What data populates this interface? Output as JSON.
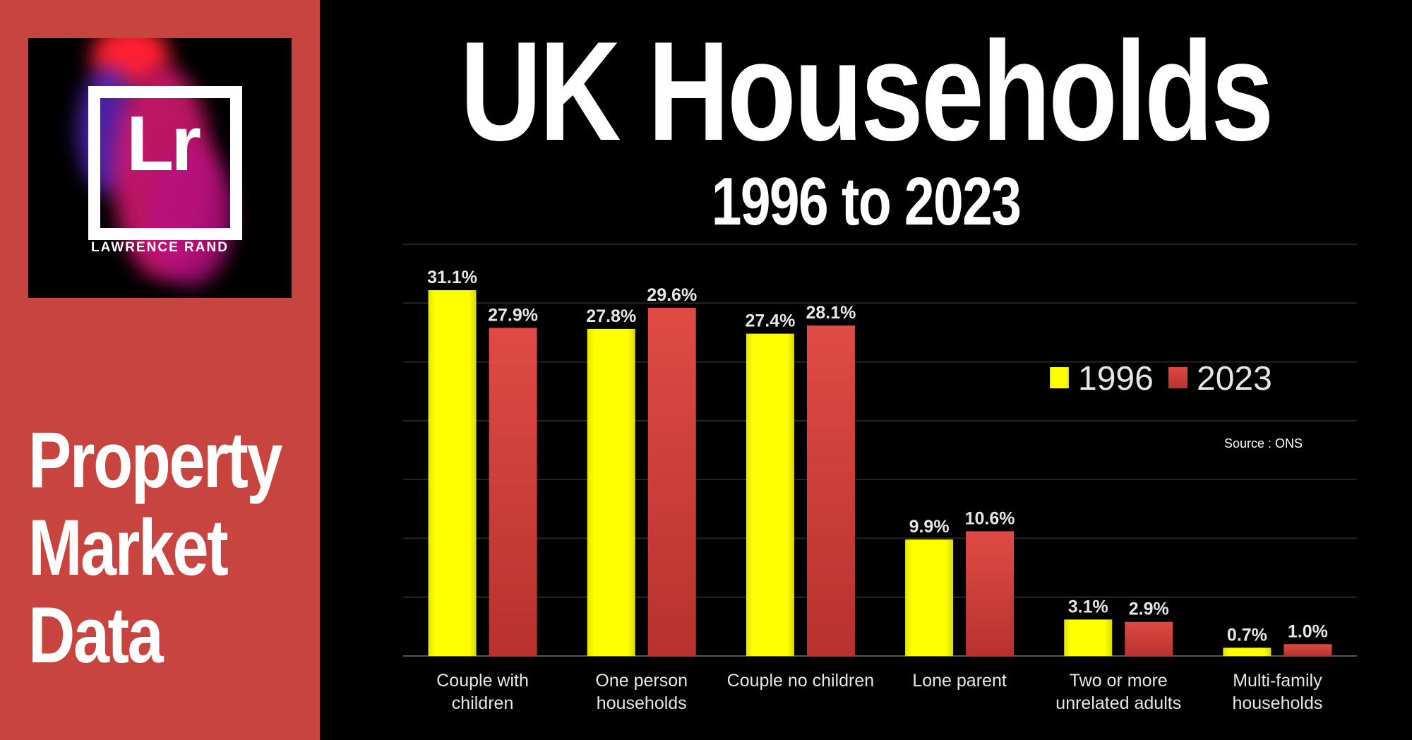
{
  "sidebar": {
    "logo_text": "Lr",
    "logo_name": "LAWRENCE RAND",
    "title_lines": [
      "Property",
      "Market",
      "Data"
    ]
  },
  "header": {
    "title": "UK Households",
    "subtitle": "1996 to 2023"
  },
  "colors": {
    "sidebar": "#c8443e",
    "series_1996": "#ffff00",
    "series_2023": "#d0403a"
  },
  "chart_data": {
    "type": "bar",
    "title": "UK Households 1996 to 2023",
    "categories": [
      [
        "Couple with",
        "children"
      ],
      [
        "One person",
        "households"
      ],
      [
        "Couple no children"
      ],
      [
        "Lone parent"
      ],
      [
        "Two or more",
        "unrelated adults"
      ],
      [
        "Multi-family",
        "households"
      ]
    ],
    "series": [
      {
        "name": "1996",
        "values": [
          31.1,
          27.8,
          27.4,
          9.9,
          3.1,
          0.7
        ],
        "labels": [
          "31.1%",
          "27.8%",
          "27.4%",
          "9.9%",
          "3.1%",
          "0.7%"
        ]
      },
      {
        "name": "2023",
        "values": [
          27.9,
          29.6,
          28.1,
          10.6,
          2.9,
          1.0
        ],
        "labels": [
          "27.9%",
          "29.6%",
          "28.1%",
          "10.6%",
          "2.9%",
          "1.0%"
        ]
      }
    ],
    "ylim": [
      0,
      35
    ],
    "grid_step": 5,
    "grid": true,
    "legend_position": "top-right",
    "annotation": "Source : ONS",
    "xlabel": "",
    "ylabel": ""
  }
}
